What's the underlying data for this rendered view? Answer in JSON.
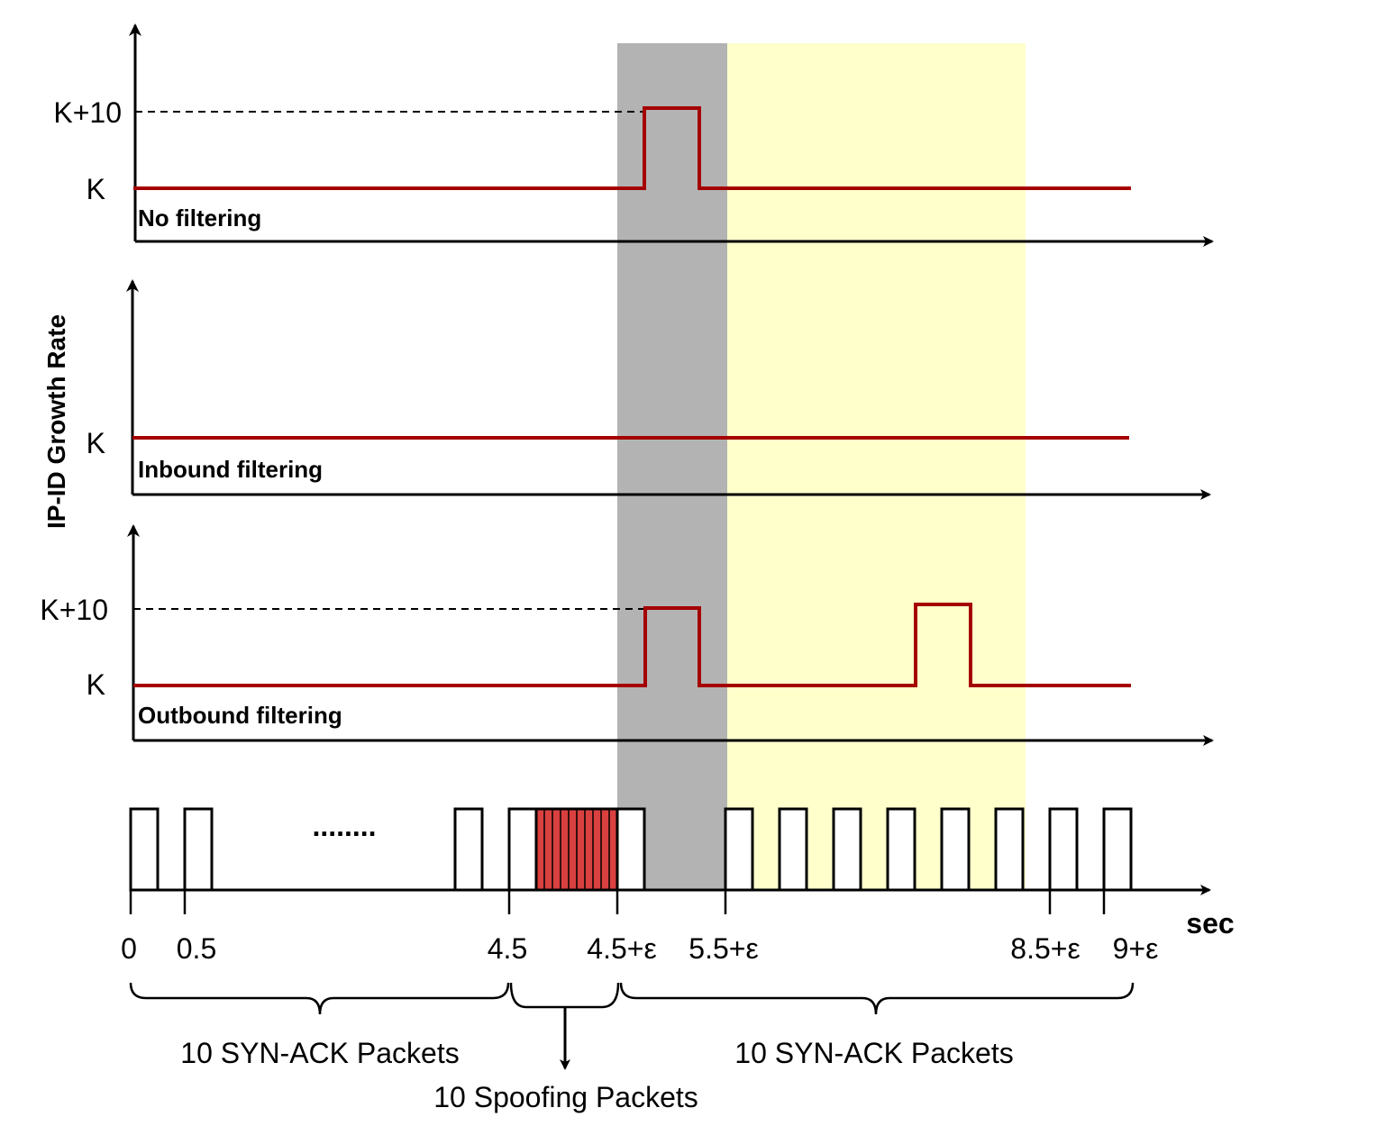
{
  "y_axis_label": "IP-ID Growth Rate",
  "panels": {
    "no_filtering": {
      "label": "No filtering",
      "k_high": "K+10",
      "k": "K"
    },
    "inbound": {
      "label": "Inbound filtering",
      "k": "K"
    },
    "outbound": {
      "label": "Outbound filtering",
      "k_high": "K+10",
      "k": "K"
    }
  },
  "timeline": {
    "unit": "sec",
    "ellipsis": "........",
    "ticks": [
      "0",
      "0.5",
      "4.5",
      "4.5+ε",
      "5.5+ε",
      "8.5+ε",
      "9+ε"
    ]
  },
  "groups": {
    "left": "10 SYN-ACK Packets",
    "middle": "10 Spoofing Packets",
    "right": "10 SYN-ACK Packets"
  },
  "colors": {
    "trace": "#a50000",
    "gray_window": "#b3b3b3",
    "yellow_window": "#ffffcc",
    "spoof_fill": "#d94040"
  }
}
